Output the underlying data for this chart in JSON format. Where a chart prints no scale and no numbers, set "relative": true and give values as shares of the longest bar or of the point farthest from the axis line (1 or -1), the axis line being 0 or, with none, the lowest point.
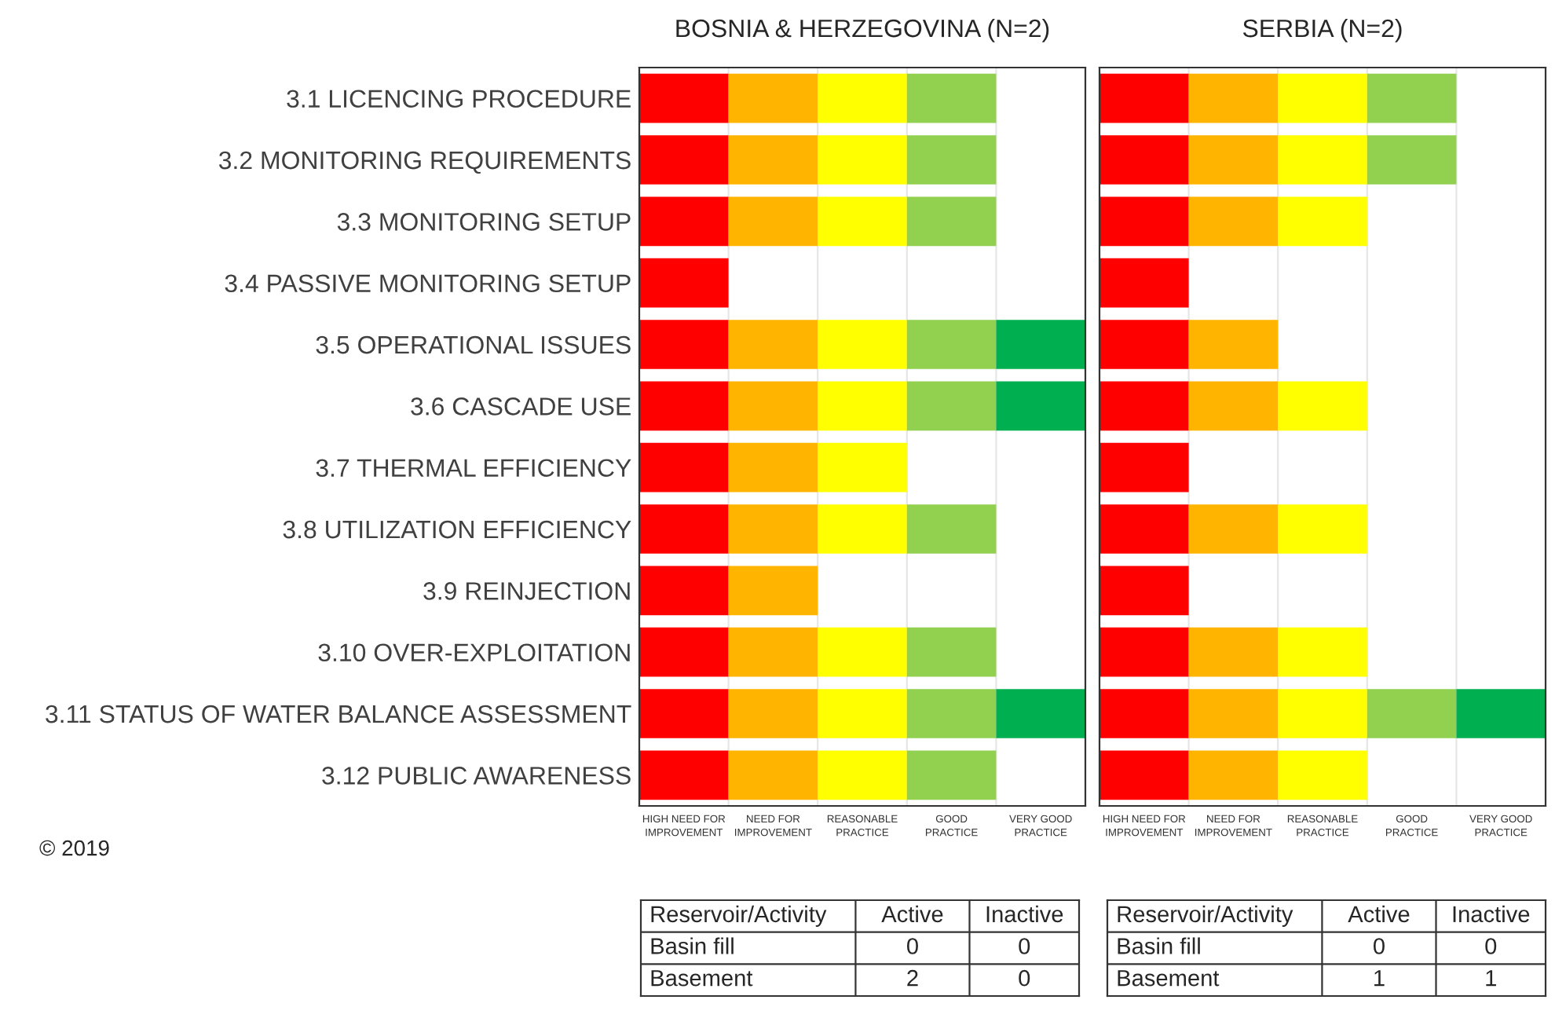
{
  "chart_data": [
    {
      "type": "bar",
      "orientation": "horizontal",
      "stacked": true,
      "relative": true,
      "tick_labels": "y",
      "title": "BOSNIA & HERZEGOVINA (N=2)",
      "categories": [
        "3.1 LICENCING PROCEDURE",
        "3.2 MONITORING REQUIREMENTS",
        "3.3 MONITORING SETUP",
        "3.4 PASSIVE MONITORING SETUP",
        "3.5 OPERATIONAL ISSUES",
        "3.6 CASCADE USE",
        "3.7 THERMAL EFFICIENCY",
        "3.8 UTILIZATION EFFICIENCY",
        "3.9 REINJECTION",
        "3.10 OVER-EXPLOITATION",
        "3.11 STATUS OF WATER BALANCE ASSESSMENT",
        "3.12 PUBLIC AWARENESS"
      ],
      "series": [
        {
          "color": "#ff0000",
          "values": [
            0.2,
            0.2,
            0.2,
            0.2,
            0.2,
            0.2,
            0.2,
            0.2,
            0.2,
            0.2,
            0.2,
            0.2
          ]
        },
        {
          "color": "#ffb400",
          "values": [
            0.2,
            0.2,
            0.2,
            null,
            0.2,
            0.2,
            0.2,
            0.2,
            0.2,
            0.2,
            0.2,
            0.2
          ]
        },
        {
          "color": "#ffff00",
          "values": [
            0.2,
            0.2,
            0.2,
            null,
            0.2,
            0.2,
            0.2,
            0.2,
            null,
            0.2,
            0.2,
            0.2
          ]
        },
        {
          "color": "#92d050",
          "values": [
            0.2,
            0.2,
            0.2,
            null,
            0.2,
            0.2,
            null,
            0.2,
            null,
            0.2,
            0.2,
            0.2
          ]
        },
        {
          "color": "#00b050",
          "values": [
            null,
            null,
            null,
            null,
            0.2,
            0.2,
            null,
            null,
            null,
            null,
            0.2,
            null
          ]
        }
      ],
      "ref_lines": [
        {
          "axis": "x",
          "value": 0.2,
          "color": "#e6e6e6"
        },
        {
          "axis": "x",
          "value": 0.4,
          "color": "#e6e6e6"
        },
        {
          "axis": "x",
          "value": 0.6,
          "color": "#e6e6e6"
        },
        {
          "axis": "x",
          "value": 0.8,
          "color": "#e6e6e6"
        }
      ],
      "annotations": [
        "HIGH NEED FOR\nIMPROVEMENT",
        "NEED FOR\nIMPROVEMENT",
        "REASONABLE\nPRACTICE",
        "GOOD\nPRACTICE",
        "VERY GOOD\nPRACTICE"
      ]
    },
    {
      "type": "bar",
      "orientation": "horizontal",
      "stacked": true,
      "relative": true,
      "tick_labels": false,
      "title": "SERBIA (N=2)",
      "categories": [
        null,
        null,
        null,
        null,
        null,
        null,
        null,
        null,
        null,
        null,
        null,
        null
      ],
      "series": [
        {
          "color": "#ff0000",
          "values": [
            0.2,
            0.2,
            0.2,
            0.2,
            0.2,
            0.2,
            0.2,
            0.2,
            0.2,
            0.2,
            0.2,
            0.2
          ]
        },
        {
          "color": "#ffb400",
          "values": [
            0.2,
            0.2,
            0.2,
            null,
            0.2,
            0.2,
            null,
            0.2,
            null,
            0.2,
            0.2,
            0.2
          ]
        },
        {
          "color": "#ffff00",
          "values": [
            0.2,
            0.2,
            0.2,
            null,
            null,
            0.2,
            null,
            0.2,
            null,
            0.2,
            0.2,
            0.2
          ]
        },
        {
          "color": "#92d050",
          "values": [
            0.2,
            0.2,
            null,
            null,
            null,
            null,
            null,
            null,
            null,
            null,
            0.2,
            null
          ]
        },
        {
          "color": "#00b050",
          "values": [
            null,
            null,
            null,
            null,
            null,
            null,
            null,
            null,
            null,
            null,
            0.2,
            null
          ]
        }
      ],
      "ref_lines": [
        {
          "axis": "x",
          "value": 0.2,
          "color": "#e6e6e6"
        },
        {
          "axis": "x",
          "value": 0.4,
          "color": "#e6e6e6"
        },
        {
          "axis": "x",
          "value": 0.6,
          "color": "#e6e6e6"
        },
        {
          "axis": "x",
          "value": 0.8,
          "color": "#e6e6e6"
        }
      ],
      "annotations": [
        "HIGH NEED FOR\nIMPROVEMENT",
        "NEED FOR\nIMPROVEMENT",
        "REASONABLE\nPRACTICE",
        "GOOD\nPRACTICE",
        "VERY GOOD\nPRACTICE"
      ]
    },
    {
      "type": "other",
      "annotations": [
        "Reservoir/Activity",
        "Active",
        "Inactive",
        "Basin fill",
        "0",
        "0",
        "Basement",
        "2",
        "0"
      ]
    },
    {
      "type": "other",
      "annotations": [
        "Reservoir/Activity",
        "Active",
        "Inactive",
        "Basin fill",
        "0",
        "0",
        "Basement",
        "1",
        "1"
      ]
    },
    {
      "type": "other",
      "annotations": [
        "© 2019"
      ]
    }
  ]
}
